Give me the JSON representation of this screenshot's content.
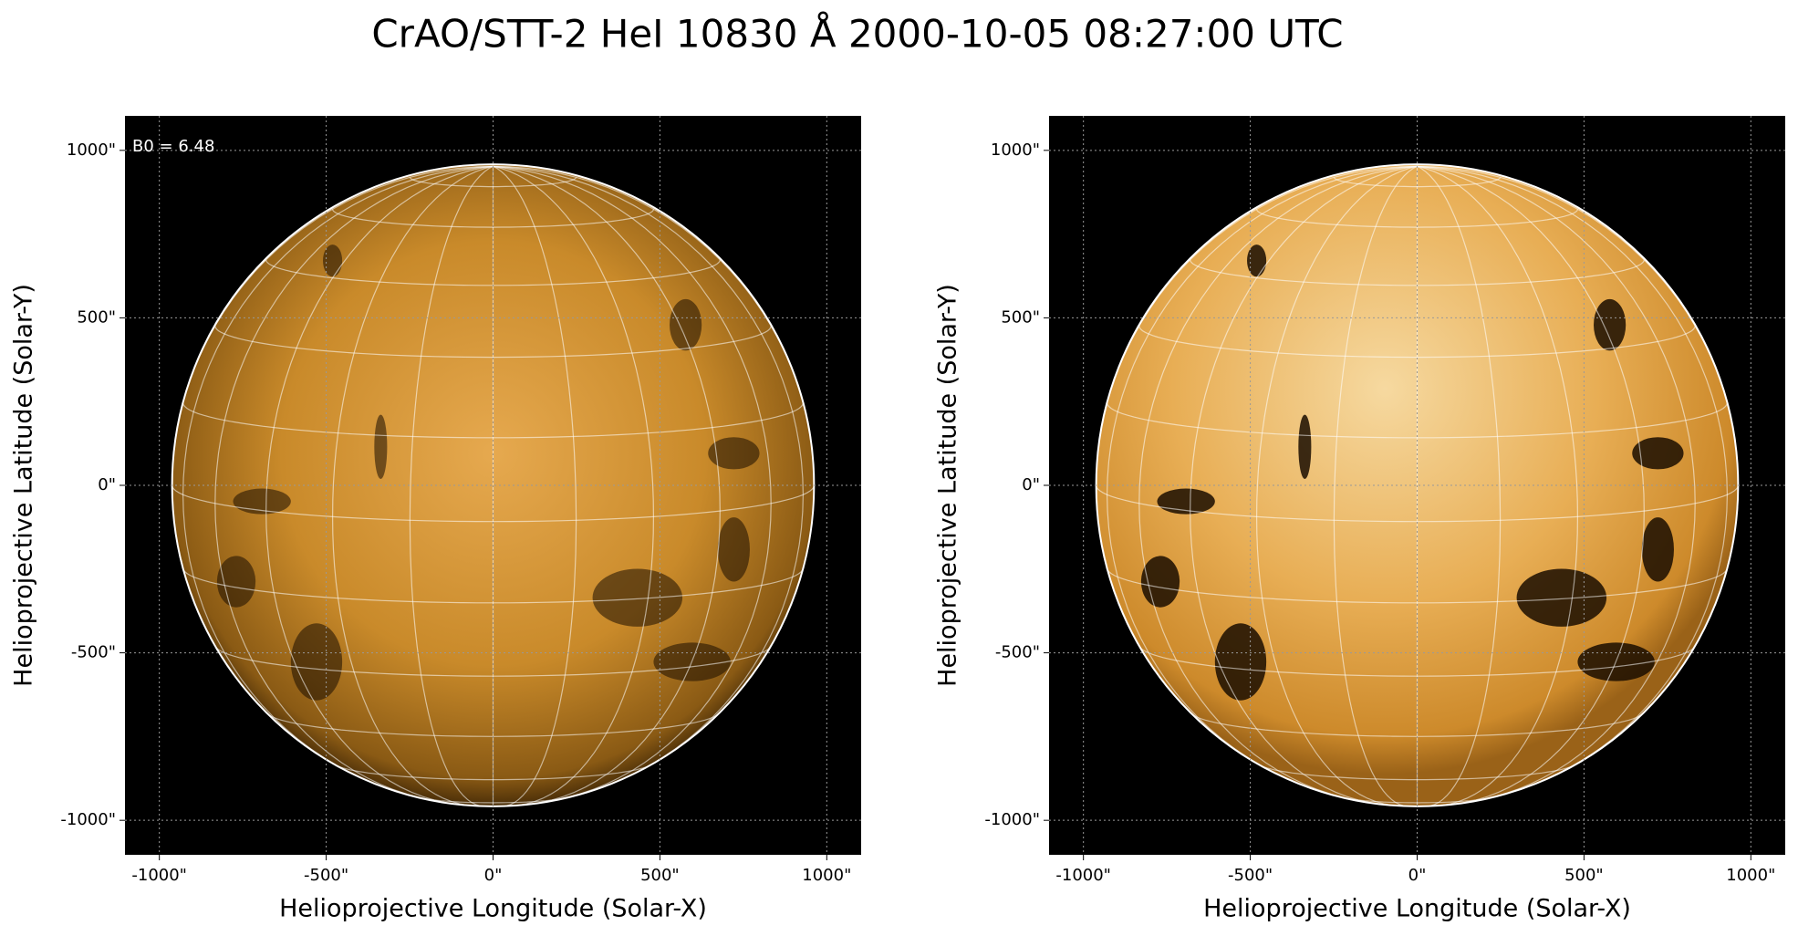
{
  "title": "CrAO/STT-2 HeI 10830 Å 2000-10-05 08:27:00 UTC",
  "chart_data": [
    {
      "type": "image",
      "xlabel": "Helioprojective Longitude (Solar-X)",
      "ylabel": "Helioprojective Latitude (Solar-Y)",
      "annotations": [
        "B0 = 6.48"
      ],
      "xlim": [
        -1103,
        1103
      ],
      "ylim": [
        -1103,
        1103
      ],
      "xticks": [
        {
          "value": -1000,
          "label": "-1000\""
        },
        {
          "value": -500,
          "label": "-500\""
        },
        {
          "value": 0,
          "label": "0\""
        },
        {
          "value": 500,
          "label": "500\""
        },
        {
          "value": 1000,
          "label": "1000\""
        }
      ],
      "yticks": [
        {
          "value": -1000,
          "label": "-1000\""
        },
        {
          "value": -500,
          "label": "-500\""
        },
        {
          "value": 0,
          "label": "0\""
        },
        {
          "value": 500,
          "label": "500\""
        },
        {
          "value": 1000,
          "label": "1000\""
        }
      ],
      "grid": true
    },
    {
      "type": "image",
      "xlabel": "Helioprojective Longitude (Solar-X)",
      "ylabel": "Helioprojective Latitude (Solar-Y)",
      "xlim": [
        -1103,
        1103
      ],
      "ylim": [
        -1103,
        1103
      ],
      "xticks": [
        {
          "value": -1000,
          "label": "-1000\""
        },
        {
          "value": -500,
          "label": "-500\""
        },
        {
          "value": 0,
          "label": "0\""
        },
        {
          "value": 500,
          "label": "500\""
        },
        {
          "value": 1000,
          "label": "1000\""
        }
      ],
      "yticks": [
        {
          "value": -1000,
          "label": "-1000\""
        },
        {
          "value": -500,
          "label": "-500\""
        },
        {
          "value": 0,
          "label": "0\""
        },
        {
          "value": 500,
          "label": "500\""
        },
        {
          "value": 1000,
          "label": "1000\""
        }
      ],
      "grid": true
    }
  ]
}
